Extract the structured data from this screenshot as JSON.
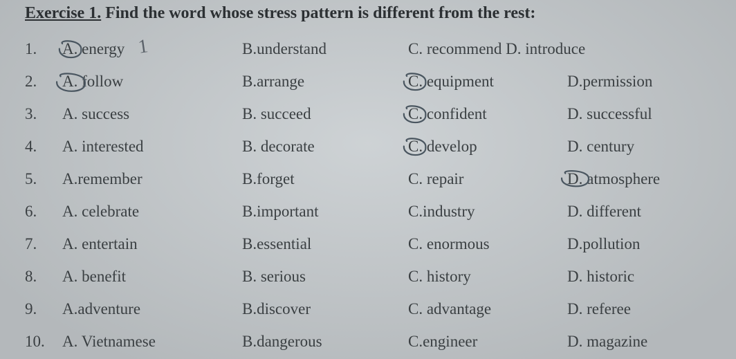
{
  "title_underlined": "Exercise 1.",
  "title_rest": " Find the word whose stress pattern is different from the rest:",
  "font_color": "#3a3f42",
  "bg_color": "#c8cdd0",
  "pencil_color": "#4a5660",
  "rows": [
    {
      "num": "1.",
      "a_letter": "A.",
      "a_word": "energy",
      "b_letter": "B.",
      "b_word": "understand",
      "c_letter": "C.",
      "c_word": "recommend",
      "d_letter": "D.",
      "d_word": "introduce",
      "c_d_joined": true,
      "marks": {
        "circle_a_letter": true,
        "tick_after_a": true
      }
    },
    {
      "num": "2.",
      "a_letter": "A.",
      "a_word": "follow",
      "b_letter": "B.",
      "b_word": "arrange",
      "c_letter": "C.",
      "c_word": "equipment",
      "d_letter": "D.",
      "d_word": "permission",
      "marks": {
        "circle_a_letter_wide": true,
        "circle_c_letter": true
      }
    },
    {
      "num": "3.",
      "a_letter": "A.",
      "a_word": "success",
      "b_letter": "B.",
      "b_word": "succeed",
      "c_letter": "C.",
      "c_word": "confident",
      "d_letter": "D.",
      "d_word": "successful",
      "marks": {
        "circle_c_letter": true
      }
    },
    {
      "num": "4.",
      "a_letter": "A.",
      "a_word": "interested",
      "b_letter": "B.",
      "b_word": "decorate",
      "c_letter": "C.",
      "c_word": "develop",
      "d_letter": "D.",
      "d_word": "century",
      "marks": {
        "circle_c_letter": true
      }
    },
    {
      "num": "5.",
      "a_letter": "A.",
      "a_word": "remember",
      "b_letter": "B.",
      "b_word": "forget",
      "c_letter": "C.",
      "c_word": "repair",
      "d_letter": "D.",
      "d_word": "atmosphere",
      "marks": {
        "circle_d_letter": true
      }
    },
    {
      "num": "6.",
      "a_letter": "A.",
      "a_word": "celebrate",
      "b_letter": "B.",
      "b_word": "important",
      "c_letter": "C.",
      "c_word": "industry",
      "d_letter": "D.",
      "d_word": "different",
      "marks": {}
    },
    {
      "num": "7.",
      "a_letter": "A.",
      "a_word": "entertain",
      "b_letter": "B.",
      "b_word": "essential",
      "c_letter": "C.",
      "c_word": "enormous",
      "d_letter": "D.",
      "d_word": "pollution",
      "marks": {}
    },
    {
      "num": "8.",
      "a_letter": "A.",
      "a_word": "benefit",
      "b_letter": "B.",
      "b_word": "serious",
      "c_letter": "C.",
      "c_word": "history",
      "d_letter": "D.",
      "d_word": "historic",
      "marks": {}
    },
    {
      "num": "9.",
      "a_letter": "A.",
      "a_word": "adventure",
      "b_letter": "B.",
      "b_word": "discover",
      "c_letter": "C.",
      "c_word": "advantage",
      "d_letter": "D.",
      "d_word": "referee",
      "marks": {}
    },
    {
      "num": "10.",
      "a_letter": "A.",
      "a_word": "Vietnamese",
      "b_letter": "B.",
      "b_word": "dangerous",
      "c_letter": "C.",
      "c_word": "engineer",
      "d_letter": "D.",
      "d_word": "magazine",
      "marks": {}
    }
  ],
  "letter_space_variants": {
    "joined": {
      "a": "A.",
      "b": "B.",
      "c": "C.",
      "d": "D."
    },
    "spaced": {
      "a": "A. ",
      "b": "B. ",
      "c": "C. ",
      "d": "D. "
    }
  }
}
